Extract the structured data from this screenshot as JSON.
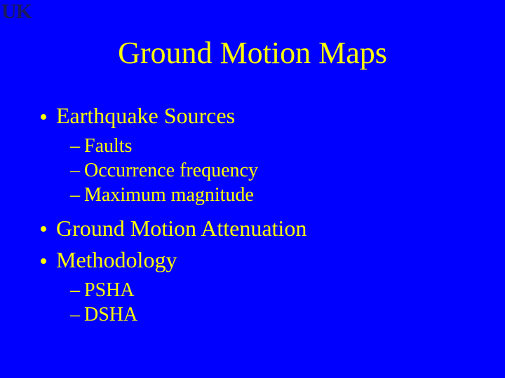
{
  "logo": "UK",
  "title": "Ground Motion Maps",
  "colors": {
    "background": "#0000ff",
    "text": "#ffff00",
    "logo": "#1a1a60"
  },
  "typography": {
    "font_family": "Times New Roman",
    "title_fontsize": 44,
    "l1_fontsize": 32,
    "l2_fontsize": 28
  },
  "items": {
    "b1": "Earthquake Sources",
    "b1_subs": {
      "s1": "Faults",
      "s2": "Occurrence frequency",
      "s3": "Maximum magnitude"
    },
    "b2": "Ground Motion Attenuation",
    "b3": "Methodology",
    "b3_subs": {
      "s1": "PSHA",
      "s2": "DSHA"
    }
  }
}
